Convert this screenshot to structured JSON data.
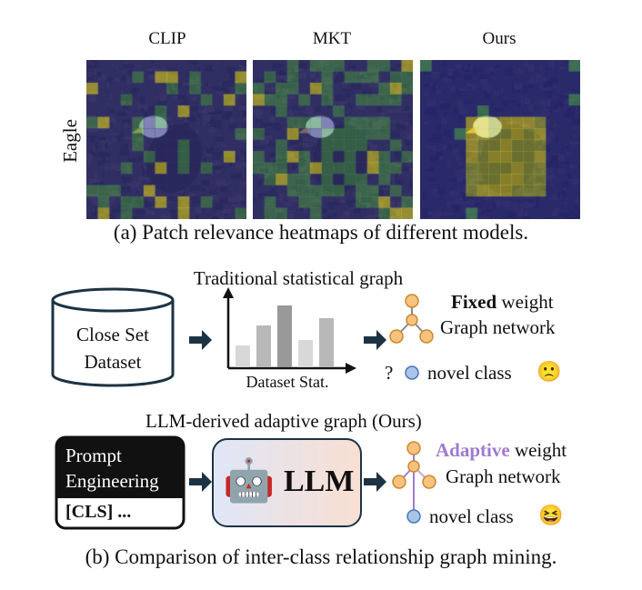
{
  "panel_a": {
    "column_titles": [
      "CLIP",
      "MKT",
      "Ours"
    ],
    "row_label": "Eagle",
    "caption": "(a) Patch relevance heatmaps of different models."
  },
  "panel_b": {
    "top_graph_title": "Traditional statistical graph",
    "dataset_label_line1": "Close Set",
    "dataset_label_line2": "Dataset",
    "chart_axis_label": "Dataset Stat.",
    "fixed_word": "Fixed",
    "weight_word": "weight",
    "graph_network": "Graph network",
    "question_mark": "?",
    "novel_class": "novel class",
    "sad_emoji": "🙁",
    "bottom_graph_title": "LLM-derived adaptive graph (Ours)",
    "prompt_line1": "Prompt",
    "prompt_line2": "Engineering",
    "prompt_cls": "[CLS] ...",
    "llm_label": "LLM",
    "robot_emoji": "🤖",
    "adaptive_word": "Adaptive",
    "weight_word2": "weight",
    "graph_network2": "Graph network",
    "novel_class2": "novel class",
    "happy_emoji": "😆",
    "caption": "(b) Comparison of inter-class relationship graph mining."
  },
  "colors": {
    "heat_blue": "#2a2f8f",
    "heat_green": "#3f8f6a",
    "heat_yellow": "#e4dc3a",
    "node_orange": "#f7c27e",
    "node_blue": "#a9c4e8",
    "adaptive_purple": "#a07ad0",
    "dark_navy": "#1c3344"
  }
}
